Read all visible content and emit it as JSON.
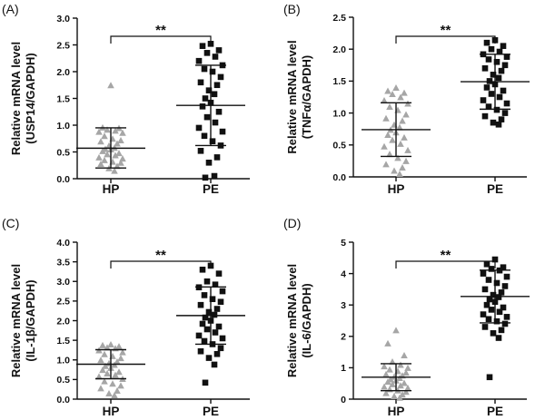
{
  "chart_data": [
    {
      "type": "scatter",
      "panel_label": "(A)",
      "ylabel_line1": "Relative mRNA level",
      "ylabel_line2": "(USP14/GAPDH)",
      "ylim": [
        0,
        3.0
      ],
      "yticks": [
        "0.0",
        "0.5",
        "1.0",
        "1.5",
        "2.0",
        "2.5",
        "3.0"
      ],
      "ytick_values": [
        0,
        0.5,
        1.0,
        1.5,
        2.0,
        2.5,
        3.0
      ],
      "categories": [
        "HP",
        "PE"
      ],
      "significance": "**",
      "series": [
        {
          "name": "HP",
          "marker": "triangle",
          "color": "#a6a6a6",
          "mean": 0.57,
          "sd_low": 0.2,
          "sd_high": 0.95,
          "values": [
            1.75,
            0.96,
            0.95,
            0.92,
            0.9,
            0.88,
            0.86,
            0.8,
            0.75,
            0.72,
            0.7,
            0.66,
            0.62,
            0.58,
            0.56,
            0.55,
            0.52,
            0.48,
            0.46,
            0.44,
            0.4,
            0.38,
            0.35,
            0.32,
            0.3,
            0.28,
            0.24,
            0.2,
            0.15
          ]
        },
        {
          "name": "PE",
          "marker": "square",
          "color": "#111111",
          "mean": 1.37,
          "sd_low": 0.62,
          "sd_high": 2.12,
          "values": [
            2.52,
            2.48,
            2.4,
            2.35,
            2.28,
            2.2,
            2.12,
            2.05,
            2.0,
            1.9,
            1.8,
            1.75,
            1.65,
            1.58,
            1.5,
            1.42,
            1.35,
            1.25,
            1.15,
            1.05,
            0.95,
            0.88,
            0.8,
            0.7,
            0.62,
            0.52,
            0.4,
            0.3,
            0.05,
            0.02
          ]
        }
      ]
    },
    {
      "type": "scatter",
      "panel_label": "(B)",
      "ylabel_line1": "Relative mRNA level",
      "ylabel_line2": "(TNFα/GAPDH)",
      "ylim": [
        0,
        2.5
      ],
      "yticks": [
        "0.0",
        "0.5",
        "1.0",
        "1.5",
        "2.0",
        "2.5"
      ],
      "ytick_values": [
        0,
        0.5,
        1.0,
        1.5,
        2.0,
        2.5
      ],
      "categories": [
        "HP",
        "PE"
      ],
      "significance": "**",
      "series": [
        {
          "name": "HP",
          "marker": "triangle",
          "color": "#a6a6a6",
          "mean": 0.74,
          "sd_low": 0.32,
          "sd_high": 1.16,
          "values": [
            1.4,
            1.35,
            1.32,
            1.3,
            1.25,
            1.2,
            1.15,
            1.1,
            1.05,
            0.98,
            0.92,
            0.88,
            0.82,
            0.78,
            0.74,
            0.7,
            0.66,
            0.62,
            0.58,
            0.52,
            0.48,
            0.42,
            0.36,
            0.3,
            0.25,
            0.2,
            0.15,
            0.1,
            0.05
          ]
        },
        {
          "name": "PE",
          "marker": "square",
          "color": "#111111",
          "mean": 1.49,
          "sd_low": 1.06,
          "sd_high": 1.92,
          "values": [
            2.14,
            2.1,
            2.05,
            2.0,
            1.96,
            1.92,
            1.88,
            1.84,
            1.8,
            1.75,
            1.7,
            1.66,
            1.6,
            1.55,
            1.5,
            1.45,
            1.4,
            1.35,
            1.3,
            1.25,
            1.2,
            1.15,
            1.1,
            1.05,
            1.0,
            0.95,
            0.9,
            0.85,
            0.82
          ]
        }
      ]
    },
    {
      "type": "scatter",
      "panel_label": "(C)",
      "ylabel_line1": "Relative mRNA level",
      "ylabel_line2": "(IL-1β/GAPDH)",
      "ylim": [
        0,
        4.0
      ],
      "yticks": [
        "0.0",
        "0.5",
        "1.0",
        "1.5",
        "2.0",
        "2.5",
        "3.0",
        "3.5",
        "4.0"
      ],
      "ytick_values": [
        0,
        0.5,
        1.0,
        1.5,
        2.0,
        2.5,
        3.0,
        3.5,
        4.0
      ],
      "categories": [
        "HP",
        "PE"
      ],
      "significance": "**",
      "series": [
        {
          "name": "HP",
          "marker": "triangle",
          "color": "#a6a6a6",
          "mean": 0.89,
          "sd_low": 0.52,
          "sd_high": 1.26,
          "values": [
            1.4,
            1.38,
            1.35,
            1.32,
            1.3,
            1.25,
            1.2,
            1.15,
            1.1,
            1.05,
            1.0,
            0.96,
            0.92,
            0.88,
            0.85,
            0.8,
            0.75,
            0.7,
            0.66,
            0.62,
            0.58,
            0.52,
            0.46,
            0.4,
            0.35,
            0.28,
            0.22,
            0.15,
            0.1
          ]
        },
        {
          "name": "PE",
          "marker": "square",
          "color": "#111111",
          "mean": 2.13,
          "sd_low": 1.4,
          "sd_high": 2.86,
          "values": [
            3.4,
            3.3,
            3.2,
            3.0,
            2.92,
            2.85,
            2.75,
            2.65,
            2.55,
            2.48,
            2.4,
            2.3,
            2.22,
            2.15,
            2.08,
            2.0,
            1.92,
            1.85,
            1.78,
            1.7,
            1.62,
            1.55,
            1.48,
            1.4,
            1.3,
            1.22,
            1.15,
            1.05,
            0.88,
            0.42
          ]
        }
      ]
    },
    {
      "type": "scatter",
      "panel_label": "(D)",
      "ylabel_line1": "Relative mRNA level",
      "ylabel_line2": "(IL-6/GAPDH)",
      "ylim": [
        0,
        5
      ],
      "yticks": [
        "0",
        "1",
        "2",
        "3",
        "4",
        "5"
      ],
      "ytick_values": [
        0,
        1,
        2,
        3,
        4,
        5
      ],
      "categories": [
        "HP",
        "PE"
      ],
      "significance": "**",
      "series": [
        {
          "name": "HP",
          "marker": "triangle",
          "color": "#a6a6a6",
          "mean": 0.7,
          "sd_low": 0.27,
          "sd_high": 1.13,
          "values": [
            2.2,
            1.78,
            1.4,
            1.2,
            1.1,
            1.05,
            1.0,
            0.95,
            0.9,
            0.85,
            0.8,
            0.76,
            0.72,
            0.68,
            0.64,
            0.6,
            0.56,
            0.52,
            0.48,
            0.44,
            0.4,
            0.36,
            0.32,
            0.28,
            0.24,
            0.2,
            0.15,
            0.1,
            0.05
          ]
        },
        {
          "name": "PE",
          "marker": "square",
          "color": "#111111",
          "mean": 3.27,
          "sd_low": 2.43,
          "sd_high": 4.11,
          "values": [
            4.45,
            4.3,
            4.2,
            4.15,
            4.1,
            4.0,
            3.9,
            3.8,
            3.7,
            3.6,
            3.5,
            3.4,
            3.32,
            3.25,
            3.18,
            3.1,
            3.0,
            2.92,
            2.85,
            2.78,
            2.7,
            2.62,
            2.55,
            2.48,
            2.4,
            2.3,
            2.2,
            2.1,
            1.95,
            0.7
          ]
        }
      ]
    }
  ]
}
